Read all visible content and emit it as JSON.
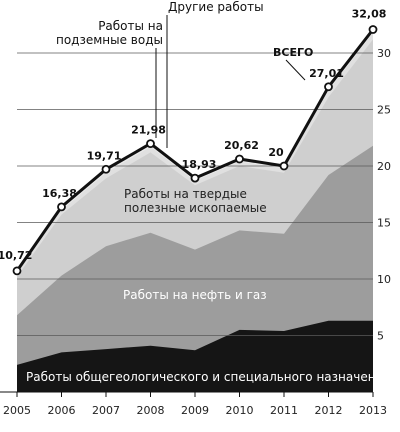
{
  "chart_data": {
    "type": "area",
    "categories": [
      "2005",
      "2006",
      "2007",
      "2008",
      "2009",
      "2010",
      "2011",
      "2012",
      "2013"
    ],
    "ylim": [
      0,
      35
    ],
    "yticks": [
      5,
      10,
      15,
      20,
      25,
      30
    ],
    "total": {
      "name": "ВСЕГО",
      "values": [
        10.72,
        16.38,
        19.71,
        21.98,
        18.93,
        20.62,
        20,
        27.01,
        32.08
      ],
      "labels": [
        "10,72",
        "16,38",
        "19,71",
        "21,98",
        "18,93",
        "20,62",
        "20",
        "27,01",
        "32,08"
      ]
    },
    "series": [
      {
        "name": "Работы общегеологического и специального назначения",
        "values": [
          2.4,
          3.5,
          3.8,
          4.1,
          3.7,
          5.5,
          5.4,
          6.3,
          6.3
        ],
        "color": "#151515"
      },
      {
        "name": "Работы на нефть и газ",
        "values": [
          6.8,
          10.3,
          12.9,
          14.1,
          12.6,
          14.3,
          14.0,
          19.2,
          21.8
        ],
        "color": "#9d9d9d"
      },
      {
        "name": "Работы на твердые полезные ископаемые",
        "values": [
          10.2,
          15.7,
          18.9,
          21.2,
          18.3,
          20.0,
          19.4,
          26.1,
          31.2
        ],
        "color": "#cfcfcf"
      },
      {
        "name": "Работы на подземные воды",
        "values": [
          10.5,
          16.1,
          19.4,
          21.7,
          18.7,
          20.4,
          19.8,
          26.7,
          31.8
        ],
        "color": "#e0e0e0"
      },
      {
        "name": "Другие работы",
        "values": [
          10.72,
          16.38,
          19.71,
          21.98,
          18.93,
          20.62,
          20,
          27.01,
          32.08
        ],
        "color": "#ebebeb"
      }
    ],
    "annotations": {
      "total_label": "ВСЕГО",
      "podzemnye_line1": "Работы на",
      "podzemnye_line2": "подземные воды",
      "drugie": "Другие работы",
      "tverdye_line1": "Работы на твердые",
      "tverdye_line2": "полезные ископаемые",
      "neft": "Работы на нефть и газ",
      "obshchegeo": "Работы общегеологического и специального назначения"
    },
    "grid": true
  }
}
